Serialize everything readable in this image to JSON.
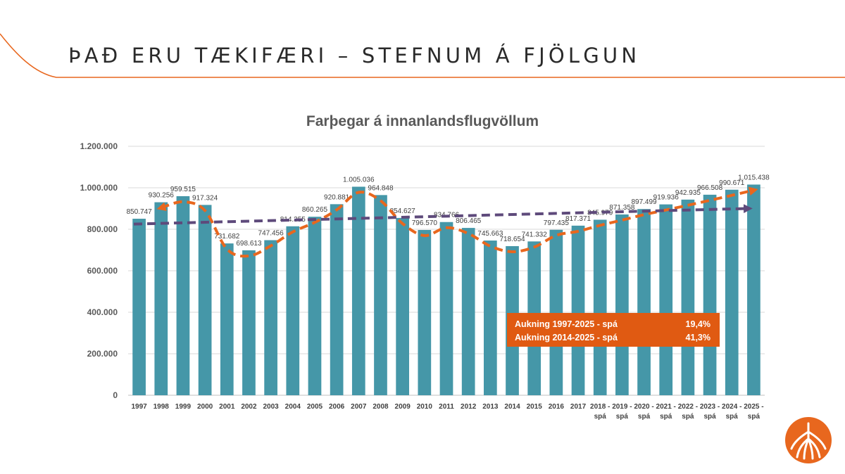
{
  "slide": {
    "title": "ÞAÐ ERU TÆKIFÆRI – STEFNUM Á FJÖLGUN"
  },
  "colors": {
    "bar": "#4597a8",
    "accent_orange": "#e8671e",
    "trend_purple": "#5e4a7b",
    "box_fill": "#e05a12",
    "grid": "#d9d9d9"
  },
  "chart_data": {
    "type": "bar",
    "title": "Farþegar á innanlandsflugvöllum",
    "categories": [
      "1997",
      "1998",
      "1999",
      "2000",
      "2001",
      "2002",
      "2003",
      "2004",
      "2005",
      "2006",
      "2007",
      "2008",
      "2009",
      "2010",
      "2011",
      "2012",
      "2013",
      "2014",
      "2015",
      "2016",
      "2017",
      "2018 - spá",
      "2019 - spá",
      "2020 - spá",
      "2021 - spá",
      "2022 - spá",
      "2023 - spá",
      "2024 - spá",
      "2025 - spá"
    ],
    "values": [
      850747,
      930256,
      959515,
      917324,
      731682,
      698613,
      747456,
      814355,
      860265,
      920881,
      1005036,
      964848,
      854627,
      796570,
      834766,
      806465,
      745663,
      718654,
      741332,
      797435,
      817371,
      845979,
      871358,
      897499,
      919936,
      942935,
      966508,
      990671,
      1015438
    ],
    "value_labels": [
      "850.747",
      "930.256",
      "959.515",
      "917.324",
      "731.682",
      "698.613",
      "747.456",
      "814.355",
      "860.265",
      "920.881",
      "1.005.036",
      "964.848",
      "854.627",
      "796.570",
      "834.766",
      "806.465",
      "745.663",
      "718.654",
      "741.332",
      "797.435",
      "817.371",
      "845.979",
      "871.358",
      "897.499",
      "919.936",
      "942.935",
      "966.508",
      "990.671",
      "1.015.438"
    ],
    "ylim": [
      0,
      1200000
    ],
    "y_ticks": [
      0,
      200000,
      400000,
      600000,
      800000,
      1000000,
      1200000
    ],
    "y_tick_labels": [
      "0",
      "200.000",
      "400.000",
      "600.000",
      "800.000",
      "1.000.000",
      "1.200.000"
    ],
    "grid": true,
    "xlabel": "",
    "ylabel": "",
    "trend_lines": [
      {
        "style": "dashed",
        "color": "#e8671e",
        "from_category": "1998",
        "to_category": "2025 - spá",
        "follows": "values",
        "arrowheads": "both"
      },
      {
        "style": "dashed",
        "color": "#5e4a7b",
        "from_category": "1997",
        "to_category": "2025 - spá",
        "from_value": 825000,
        "to_value": 900000,
        "arrowheads": "end"
      }
    ],
    "annotation_box": {
      "rows": [
        {
          "label": "Aukning 1997-2025 - spá",
          "value": "19,4%"
        },
        {
          "label": "Aukning 2014-2025 - spá",
          "value": "41,3%"
        }
      ]
    }
  }
}
